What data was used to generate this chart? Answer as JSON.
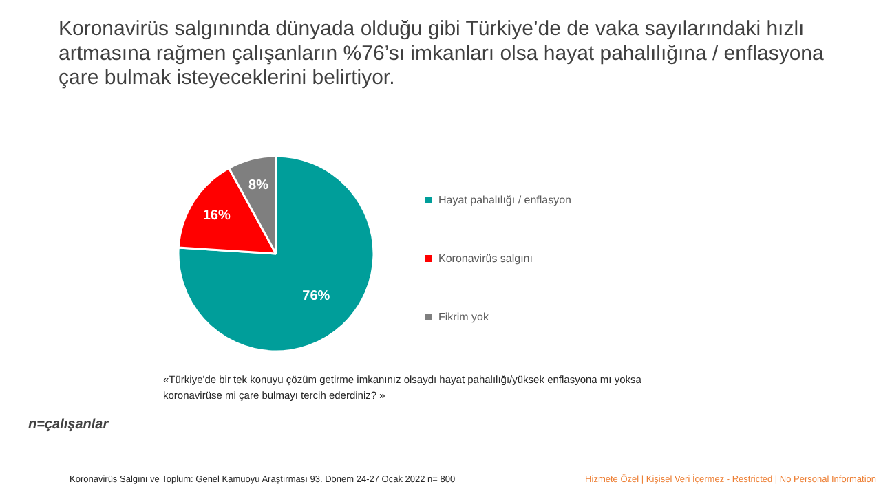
{
  "chart_data": {
    "type": "pie",
    "title": "Koronavirüs salgınında dünyada olduğu gibi Türkiye’de de vaka sayılarındaki hızlı\nartmasına rağmen çalışanların %76’sı imkanları olsa hayat pahalılığına / enflasyona\nçare bulmak isteyeceklerini belirtiyor.",
    "categories": [
      "Hayat pahalılığı / enflasyon",
      "Koronavirüs salgını",
      "Fikrim yok"
    ],
    "values": [
      76,
      16,
      8
    ],
    "value_labels": [
      "76%",
      "16%",
      "8%"
    ],
    "colors": [
      "#009e9a",
      "#ff0000",
      "#7f7f7f"
    ],
    "legend": "right",
    "annotations": [
      "«Türkiye'de bir tek konuyu çözüm getirme imkanınız olsaydı hayat pahalılığı/yüksek  enflasyona mı yoksa\nkoronavirüse mi çare bulmayı tercih ederdiniz? »",
      "n=çalışanlar",
      "Koronavirüs  Salgını ve Toplum:  Genel Kamuoyu Araştırması 93. Dönem  24-27  Ocak 2022 n= 800",
      "Hizmete Özel | Kişisel Veri İçermez - Restricted | No Personal Information"
    ]
  }
}
